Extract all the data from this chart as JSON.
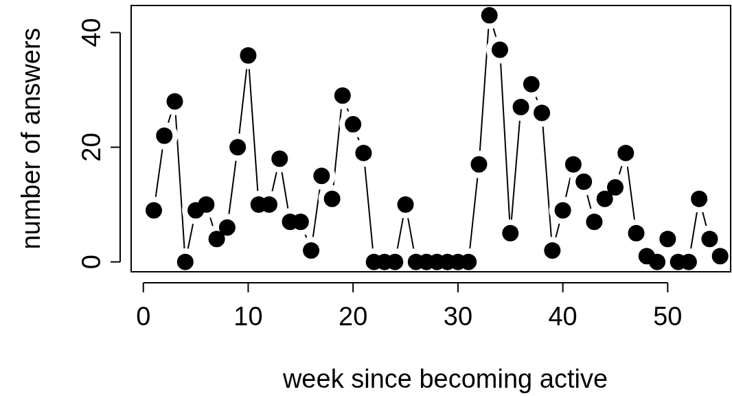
{
  "chart_data": {
    "type": "line",
    "xlabel": "week since becoming active",
    "ylabel": "number of answers",
    "x": [
      1,
      2,
      3,
      4,
      5,
      6,
      7,
      8,
      9,
      10,
      11,
      12,
      13,
      14,
      15,
      16,
      17,
      18,
      19,
      20,
      21,
      22,
      23,
      24,
      25,
      26,
      27,
      28,
      29,
      30,
      31,
      32,
      33,
      34,
      35,
      36,
      37,
      38,
      39,
      40,
      41,
      42,
      43,
      44,
      45,
      46,
      47,
      48,
      49,
      50,
      51,
      52,
      53,
      54,
      55
    ],
    "series": [
      {
        "color": "#000000",
        "values": [
          9,
          22,
          28,
          0,
          9,
          10,
          4,
          6,
          20,
          36,
          10,
          10,
          18,
          7,
          7,
          2,
          15,
          11,
          29,
          24,
          19,
          0,
          0,
          0,
          10,
          0,
          0,
          0,
          0,
          0,
          0,
          17,
          43,
          37,
          5,
          27,
          31,
          26,
          2,
          9,
          17,
          14,
          7,
          11,
          13,
          19,
          5,
          1,
          0,
          4,
          0,
          0,
          11,
          4,
          1
        ]
      }
    ],
    "xlim": [
      -1.16,
      56
    ],
    "ylim": [
      -1.72,
      44.72
    ],
    "xticks": [
      0,
      10,
      20,
      30,
      40,
      50
    ],
    "yticks": [
      0,
      20,
      40
    ],
    "marker": "circle",
    "line_style": "solid",
    "grid": false
  }
}
